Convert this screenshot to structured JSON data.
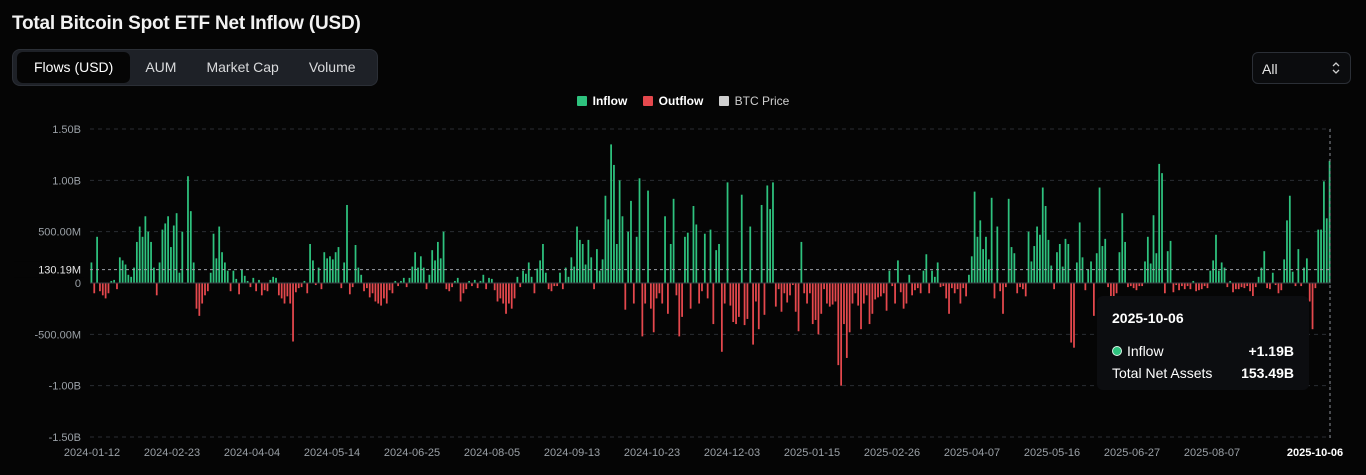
{
  "title": "Total Bitcoin Spot ETF Net Inflow (USD)",
  "tabs": [
    {
      "label": "Flows (USD)",
      "active": true
    },
    {
      "label": "AUM",
      "active": false
    },
    {
      "label": "Market Cap",
      "active": false
    },
    {
      "label": "Volume",
      "active": false
    }
  ],
  "range_select": {
    "value": "All"
  },
  "legend": [
    {
      "label": "Inflow",
      "color": "#2ec27e"
    },
    {
      "label": "Outflow",
      "color": "#e5484d"
    },
    {
      "label": "BTC Price",
      "color": "#cfcfcf"
    }
  ],
  "tooltip": {
    "date": "2025-10-06",
    "inflow_label": "Inflow",
    "inflow_value": "+1.19B",
    "assets_label": "Total Net Assets",
    "assets_value": "153.49B"
  },
  "chart_data": {
    "type": "bar",
    "ylim": [
      -1500000000,
      1500000000
    ],
    "y_ticks": [
      {
        "value": 1500000000,
        "label": "1.50B"
      },
      {
        "value": 1000000000,
        "label": "1.00B"
      },
      {
        "value": 500000000,
        "label": "500.00M"
      },
      {
        "value": 0,
        "label": "0"
      },
      {
        "value": -500000000,
        "label": "-500.00M"
      },
      {
        "value": -1000000000,
        "label": "-1.00B"
      },
      {
        "value": -1500000000,
        "label": "-1.50B"
      }
    ],
    "x_ticks": [
      "2024-01-12",
      "2024-02-23",
      "2024-04-04",
      "2024-05-14",
      "2024-06-25",
      "2024-08-05",
      "2024-09-13",
      "2024-10-23",
      "2024-12-03",
      "2025-01-15",
      "2025-02-26",
      "2025-04-07",
      "2025-05-16",
      "2025-06-27",
      "2025-08-07",
      "20"
    ],
    "highlight_x": "2025-10-06",
    "reference_line": {
      "value": 130190000,
      "label": "130.19M"
    },
    "colors": {
      "inflow": "#2ec27e",
      "outflow": "#e5484d"
    },
    "values": [
      200,
      -100,
      450,
      -80,
      -120,
      -150,
      -100,
      20,
      30,
      -60,
      250,
      220,
      180,
      80,
      60,
      150,
      400,
      550,
      450,
      650,
      500,
      400,
      150,
      -120,
      200,
      520,
      580,
      650,
      350,
      560,
      680,
      100,
      500,
      0,
      1040,
      700,
      200,
      -250,
      -320,
      -200,
      -120,
      -80,
      100,
      480,
      240,
      550,
      300,
      200,
      120,
      -80,
      120,
      40,
      -110,
      130,
      70,
      20,
      -40,
      50,
      -80,
      30,
      -120,
      -70,
      -80,
      30,
      60,
      50,
      -120,
      -150,
      -200,
      -130,
      -200,
      -570,
      -90,
      -50,
      -40,
      20,
      -100,
      380,
      220,
      -20,
      150,
      -60,
      300,
      240,
      260,
      230,
      300,
      350,
      -50,
      200,
      760,
      -110,
      -40,
      370,
      150,
      80,
      -80,
      -50,
      -140,
      -100,
      -180,
      -200,
      -220,
      -150,
      -200,
      -70,
      -100,
      20,
      -30,
      20,
      50,
      -40,
      50,
      160,
      300,
      150,
      260,
      150,
      -60,
      80,
      320,
      220,
      400,
      240,
      500,
      -60,
      -80,
      -40,
      20,
      50,
      -180,
      -100,
      -60,
      20,
      -30,
      30,
      -50,
      20,
      80,
      -60,
      50,
      40,
      -70,
      -180,
      -150,
      -200,
      -300,
      -200,
      -250,
      -150,
      60,
      -40,
      120,
      90,
      200,
      60,
      -100,
      140,
      220,
      380,
      100,
      -60,
      -80,
      -30,
      -30,
      100,
      -60,
      150,
      60,
      250,
      160,
      550,
      420,
      380,
      180,
      420,
      250,
      -60,
      330,
      120,
      230,
      850,
      620,
      1350,
      1150,
      380,
      1000,
      650,
      -260,
      500,
      800,
      -200,
      450,
      1020,
      -520,
      -200,
      900,
      -250,
      -480,
      -150,
      -100,
      -200,
      650,
      -300,
      380,
      820,
      -120,
      -520,
      -330,
      450,
      490,
      -250,
      750,
      570,
      -200,
      -80,
      480,
      -150,
      520,
      -400,
      320,
      380,
      -670,
      -200,
      980,
      -220,
      -380,
      -400,
      -330,
      860,
      -410,
      -350,
      550,
      -600,
      -180,
      -450,
      760,
      -310,
      950,
      720,
      980,
      -230,
      -60,
      -280,
      -100,
      -190,
      -120,
      -20,
      -280,
      -470,
      400,
      -100,
      -200,
      -100,
      -400,
      -360,
      -500,
      -300,
      -60,
      -200,
      -230,
      -210,
      -180,
      -800,
      -1000,
      -400,
      -730,
      -480,
      -200,
      -100,
      -220,
      -450,
      -200,
      -120,
      -400,
      -300,
      -160,
      -140,
      -130,
      -100,
      -270,
      120,
      -30,
      -200,
      220,
      -90,
      -250,
      -200,
      80,
      -120,
      -70,
      -50,
      -100,
      120,
      280,
      -100,
      120,
      60,
      200,
      -40,
      -30,
      -150,
      -300,
      -50,
      -100,
      -60,
      -200,
      -50,
      -130,
      80,
      260,
      890,
      450,
      610,
      330,
      450,
      230,
      830,
      -150,
      550,
      -80,
      -300,
      -40,
      820,
      350,
      290,
      -100,
      -40,
      -60,
      -130,
      500,
      210,
      360,
      550,
      470,
      930,
      750,
      420,
      170,
      -60,
      300,
      380,
      160,
      430,
      380,
      -580,
      -630,
      200,
      590,
      250,
      -70,
      130,
      210,
      -320,
      290,
      930,
      360,
      430,
      -40,
      -140,
      -220,
      -100,
      300,
      680,
      400,
      -40,
      -30,
      -50,
      -70,
      -30,
      -30,
      210,
      450,
      190,
      660,
      290,
      1160,
      1070,
      -100,
      310,
      410,
      -90,
      -20,
      -70,
      -30,
      -60,
      -30,
      -60,
      20,
      -80,
      -70,
      -60,
      -30,
      -50,
      120,
      220,
      470,
      120,
      200,
      150,
      -40,
      20,
      -90,
      -60,
      -60,
      -40,
      -50,
      -30,
      -80,
      -200,
      -40,
      60,
      150,
      310,
      -50,
      -60,
      100,
      -20,
      -100,
      -70,
      230,
      610,
      850,
      110,
      -30,
      330,
      -30,
      150,
      240,
      -180,
      -450,
      -50,
      520,
      520,
      990,
      630,
      1190
    ]
  }
}
